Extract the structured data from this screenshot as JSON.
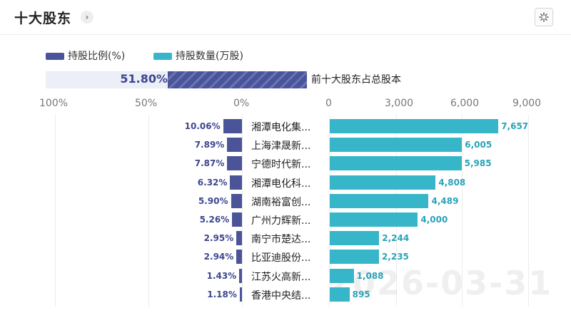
{
  "header": {
    "title": "十大股东",
    "chevron": "›"
  },
  "legend": {
    "pct_label": "持股比例(%)",
    "qty_label": "持股数量(万股)"
  },
  "summary": {
    "pct_value": 0.518,
    "pct_text": "51.80%",
    "label": "前十大股东占总股本"
  },
  "left_ticks": [
    "100%",
    "50%",
    "0%"
  ],
  "right_ticks": [
    "0",
    "3,000",
    "6,000",
    "9,000"
  ],
  "watermark": "2026-03-31",
  "colors": {
    "pct": "#4b5498",
    "qty": "#38b6c9"
  },
  "chart_data": {
    "type": "bar",
    "categories": [
      "湘潭电化集...",
      "上海津晟新...",
      "宁德时代新...",
      "湘潭电化科...",
      "湖南裕富创...",
      "广州力辉新...",
      "南宁市楚达...",
      "比亚迪股份...",
      "江苏火高新...",
      "香港中央结..."
    ],
    "series": [
      {
        "name": "持股比例(%)",
        "values": [
          10.06,
          7.89,
          7.87,
          6.32,
          5.9,
          5.26,
          2.95,
          2.94,
          1.43,
          1.18
        ],
        "labels": [
          "10.06%",
          "7.89%",
          "7.87%",
          "6.32%",
          "5.90%",
          "5.26%",
          "2.95%",
          "2.94%",
          "1.43%",
          "1.18%"
        ]
      },
      {
        "name": "持股数量(万股)",
        "values": [
          7657,
          6005,
          5985,
          4808,
          4489,
          4000,
          2244,
          2235,
          1088,
          895
        ],
        "labels": [
          "7,657",
          "6,005",
          "5,985",
          "4,808",
          "4,489",
          "4,000",
          "2,244",
          "2,235",
          "1,088",
          "895"
        ]
      }
    ],
    "left_axis": {
      "range": [
        100,
        0
      ],
      "unit": "%"
    },
    "right_axis": {
      "range": [
        0,
        9000
      ]
    }
  }
}
